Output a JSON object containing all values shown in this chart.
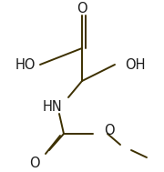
{
  "bg_color": "#ffffff",
  "line_color": "#1a1a1a",
  "bond_color": "#3d3000",
  "figsize": [
    1.8,
    1.89
  ],
  "dpi": 100,
  "font_size": 10.5,
  "xlim": [
    0,
    180
  ],
  "ylim": [
    0,
    189
  ]
}
